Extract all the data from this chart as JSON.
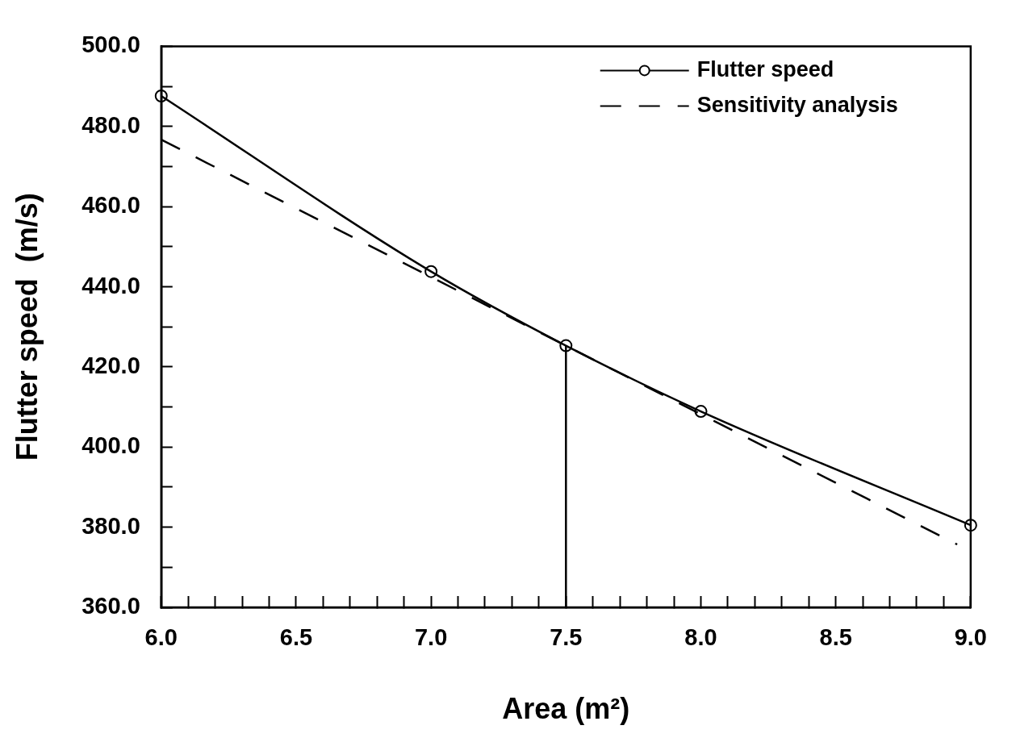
{
  "chart_data": {
    "type": "line",
    "xlabel": "Area (m²)",
    "ylabel": "Flutter speed  (m/s)",
    "xlim": [
      6.0,
      9.0
    ],
    "ylim": [
      360,
      500
    ],
    "xticks": [
      {
        "value": 6.0,
        "label": "6.0"
      },
      {
        "value": 6.1,
        "label": null
      },
      {
        "value": 6.2,
        "label": null
      },
      {
        "value": 6.3,
        "label": null
      },
      {
        "value": 6.4,
        "label": null
      },
      {
        "value": 6.5,
        "label": "6.5"
      },
      {
        "value": 6.6,
        "label": null
      },
      {
        "value": 6.7,
        "label": null
      },
      {
        "value": 6.8,
        "label": null
      },
      {
        "value": 6.9,
        "label": null
      },
      {
        "value": 7.0,
        "label": "7.0"
      },
      {
        "value": 7.1,
        "label": null
      },
      {
        "value": 7.2,
        "label": null
      },
      {
        "value": 7.3,
        "label": null
      },
      {
        "value": 7.4,
        "label": null
      },
      {
        "value": 7.5,
        "label": "7.5"
      },
      {
        "value": 7.6,
        "label": null
      },
      {
        "value": 7.7,
        "label": null
      },
      {
        "value": 7.8,
        "label": null
      },
      {
        "value": 7.9,
        "label": null
      },
      {
        "value": 8.0,
        "label": "8.0"
      },
      {
        "value": 8.1,
        "label": null
      },
      {
        "value": 8.2,
        "label": null
      },
      {
        "value": 8.3,
        "label": null
      },
      {
        "value": 8.4,
        "label": null
      },
      {
        "value": 8.5,
        "label": "8.5"
      },
      {
        "value": 8.6,
        "label": null
      },
      {
        "value": 8.7,
        "label": null
      },
      {
        "value": 8.8,
        "label": null
      },
      {
        "value": 8.9,
        "label": null
      },
      {
        "value": 9.0,
        "label": "9.0"
      }
    ],
    "yticks": [
      {
        "value": 360,
        "label": "360.0"
      },
      {
        "value": 370,
        "label": null
      },
      {
        "value": 380,
        "label": "380.0"
      },
      {
        "value": 390,
        "label": null
      },
      {
        "value": 400,
        "label": "400.0"
      },
      {
        "value": 410,
        "label": null
      },
      {
        "value": 420,
        "label": "420.0"
      },
      {
        "value": 430,
        "label": null
      },
      {
        "value": 440,
        "label": "440.0"
      },
      {
        "value": 450,
        "label": null
      },
      {
        "value": 460,
        "label": "460.0"
      },
      {
        "value": 470,
        "label": null
      },
      {
        "value": 480,
        "label": "480.0"
      },
      {
        "value": 490,
        "label": null
      },
      {
        "value": 500,
        "label": "500.0"
      }
    ],
    "grid": false,
    "legend": "top right",
    "series": [
      {
        "name": "Flutter speed",
        "color": "#000000",
        "marker": "circle",
        "line_style": "solid",
        "x": [
          6.0,
          7.0,
          7.5,
          8.0,
          9.0
        ],
        "values": [
          487.6,
          443.8,
          425.3,
          408.9,
          380.5
        ]
      },
      {
        "name": "Sensitivity analysis",
        "color": "#000000",
        "marker": "none",
        "line_style": "dashed",
        "x": [
          6.0,
          7.5,
          8.95
        ],
        "values": [
          476.7,
          425.3,
          375.7
        ]
      },
      {
        "color": "#000000",
        "marker": "none",
        "line_style": "solid",
        "x": [
          7.5,
          7.5
        ],
        "values": [
          360,
          425.3
        ]
      }
    ]
  }
}
